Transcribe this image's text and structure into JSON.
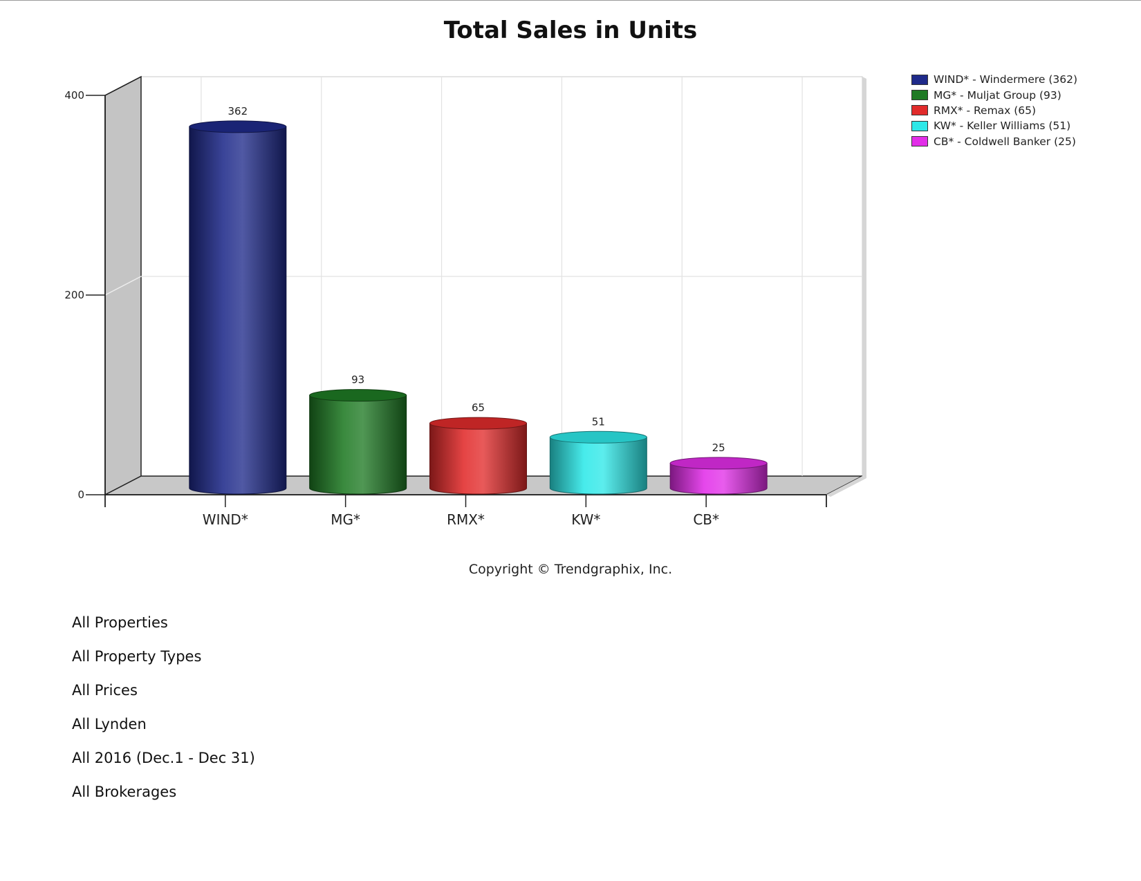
{
  "chart_data": {
    "type": "bar",
    "style": "3d-cylinder",
    "title": "Total Sales in Units",
    "xlabel": "",
    "ylabel": "",
    "ylim": [
      0,
      400
    ],
    "yticks": [
      0,
      200,
      400
    ],
    "grid": true,
    "legend_position": "top-right",
    "categories": [
      "WIND*",
      "MG*",
      "RMX*",
      "KW*",
      "CB*"
    ],
    "values": [
      362,
      93,
      65,
      51,
      25
    ],
    "data_labels": [
      "362",
      "93",
      "65",
      "51",
      "25"
    ],
    "colors": [
      "#1f2a8a",
      "#1f7a24",
      "#e12b2b",
      "#2ee8e8",
      "#e22ee8"
    ],
    "legend": [
      "WIND* - Windermere (362)",
      "MG* - Muljat Group (93)",
      "RMX* - Remax (65)",
      "KW* - Keller Williams (51)",
      "CB* - Coldwell Banker (25)"
    ]
  },
  "footer": {
    "copyright": "Copyright © Trendgraphix, Inc."
  },
  "filters": [
    "All Properties",
    "All Property Types",
    "All Prices",
    "All Lynden",
    "All 2016 (Dec.1 - Dec 31)",
    "All Brokerages"
  ]
}
